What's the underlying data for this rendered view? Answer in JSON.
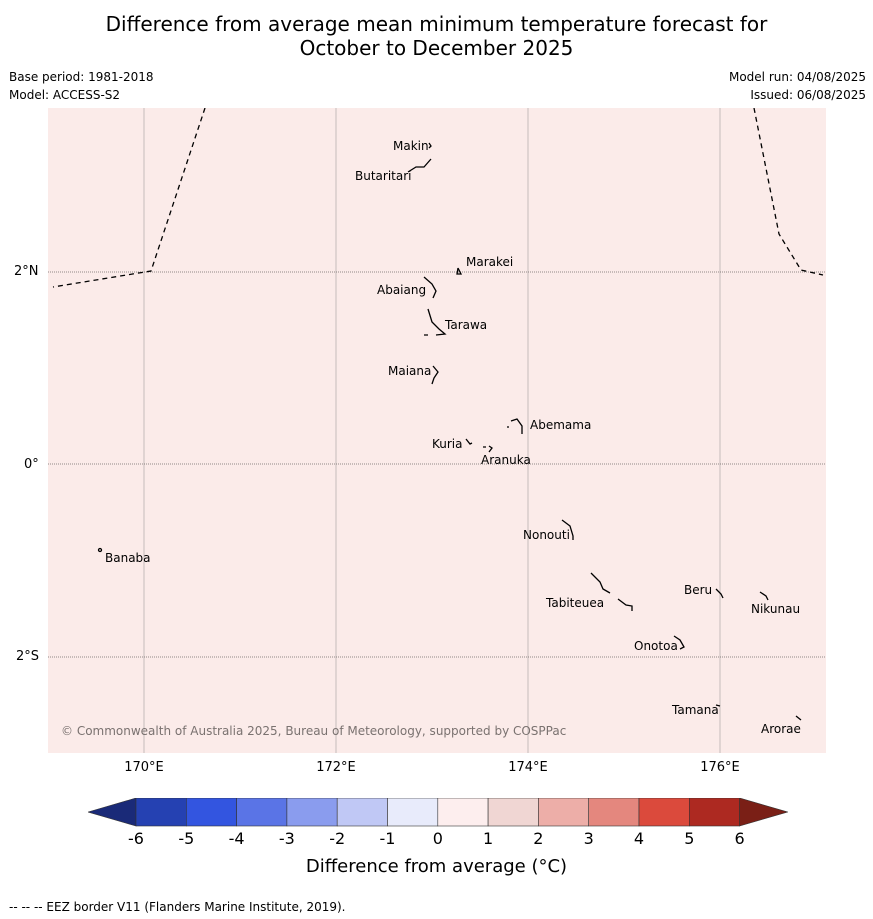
{
  "title": {
    "line1": "Difference from average mean minimum temperature forecast for",
    "line2": "October to December 2025"
  },
  "meta": {
    "base_period": "Base period: 1981-2018",
    "model": "Model: ACCESS-S2",
    "model_run": "Model run: 04/08/2025",
    "issued": "Issued: 06/08/2025"
  },
  "map": {
    "background_color": "#fbebe9",
    "lat_labels": [
      "2°N",
      "0°",
      "2°S"
    ],
    "lon_labels": [
      "170°E",
      "172°E",
      "174°E",
      "176°E"
    ],
    "islands": [
      "Makin",
      "Butaritari",
      "Marakei",
      "Abaiang",
      "Tarawa",
      "Maiana",
      "Abemama",
      "Kuria",
      "Aranuka",
      "Nonouti",
      "Banaba",
      "Beru",
      "Nikunau",
      "Tabiteuea",
      "Onotoa",
      "Tamana",
      "Arorae"
    ],
    "copyright": "© Commonwealth of Australia 2025, Bureau of Meteorology, supported by COSPPac"
  },
  "colorbar": {
    "ticks": [
      "-6",
      "-5",
      "-4",
      "-3",
      "-2",
      "-1",
      "0",
      "1",
      "2",
      "3",
      "4",
      "5",
      "6"
    ],
    "colors": [
      "#1a2a78",
      "#2541b2",
      "#3355e0",
      "#5a74e6",
      "#8a9cee",
      "#c0c8f5",
      "#e8ebfb",
      "#fdeeee",
      "#f0d6d3",
      "#edaea8",
      "#e4877e",
      "#db4a3c",
      "#ad2921",
      "#7a1f16"
    ],
    "label": "Difference from average (°C)"
  },
  "footnote": "--  --  -- EEZ border V11 (Flanders Marine Institute, 2019)."
}
